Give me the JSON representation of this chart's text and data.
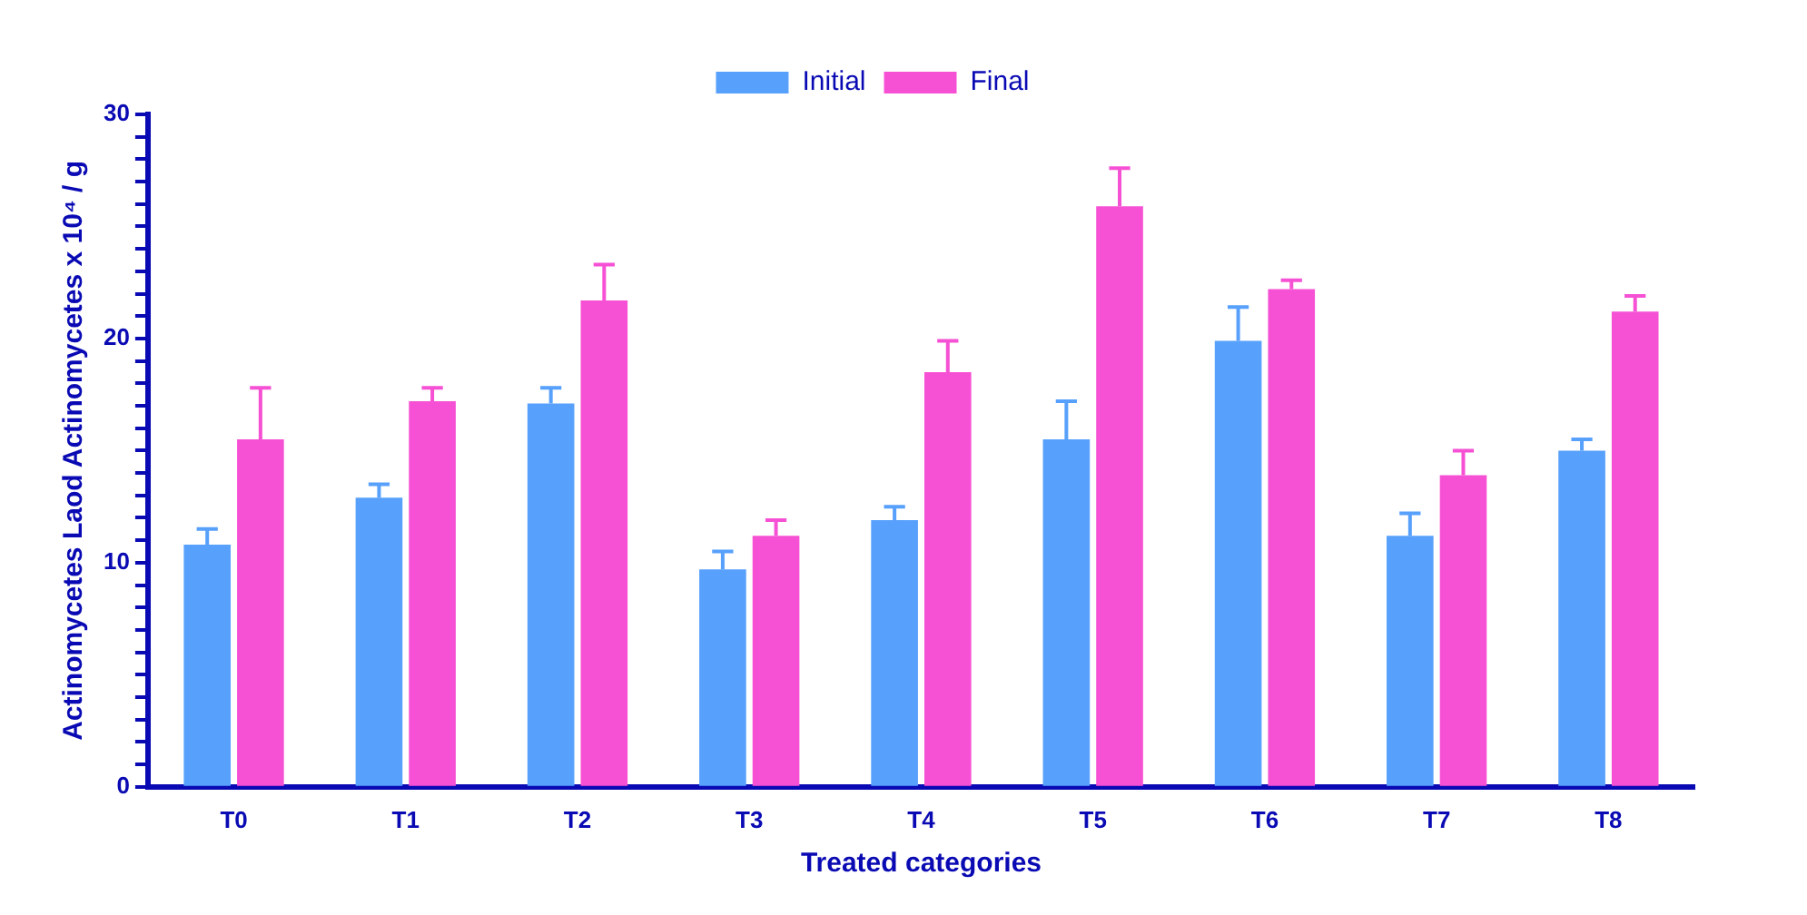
{
  "chart_data": {
    "type": "bar",
    "xlabel": "Treated categories",
    "ylabel": "Actinomycetes Laod Actinomycetes x 10⁴ / g",
    "categories": [
      "T0",
      "T1",
      "T2",
      "T3",
      "T4",
      "T5",
      "T6",
      "T7",
      "T8"
    ],
    "series": [
      {
        "name": "Initial",
        "color": "#57a0fc",
        "values": [
          10.8,
          12.9,
          17.1,
          9.7,
          11.9,
          15.5,
          19.9,
          11.2,
          15.0
        ],
        "errors": [
          [
            10.8,
            11.5
          ],
          [
            12.9,
            13.5
          ],
          [
            17.1,
            17.8
          ],
          [
            9.7,
            10.5
          ],
          [
            11.9,
            12.5
          ],
          [
            15.5,
            17.2
          ],
          [
            19.9,
            21.4
          ],
          [
            11.2,
            12.2
          ],
          [
            15.0,
            15.5
          ]
        ]
      },
      {
        "name": "Final",
        "color": "#f651d4",
        "values": [
          15.5,
          17.2,
          21.7,
          11.2,
          18.5,
          25.9,
          22.2,
          13.9,
          21.2
        ],
        "errors": [
          [
            15.5,
            17.8
          ],
          [
            17.2,
            17.8
          ],
          [
            21.7,
            23.3
          ],
          [
            11.2,
            11.9
          ],
          [
            18.5,
            19.9
          ],
          [
            25.9,
            27.6
          ],
          [
            22.2,
            22.6
          ],
          [
            13.9,
            15.0
          ],
          [
            21.2,
            21.9
          ]
        ]
      }
    ],
    "ylim": [
      0,
      30
    ],
    "yticks": [
      0,
      {
        "value": 1,
        "label": null
      },
      {
        "value": 2,
        "label": null
      },
      {
        "value": 3,
        "label": null
      },
      {
        "value": 4,
        "label": null
      },
      {
        "value": 5,
        "label": null
      },
      {
        "value": 6,
        "label": null
      },
      {
        "value": 7,
        "label": null
      },
      {
        "value": 8,
        "label": null
      },
      {
        "value": 9,
        "label": null
      },
      10,
      {
        "value": 11,
        "label": null
      },
      {
        "value": 12,
        "label": null
      },
      {
        "value": 13,
        "label": null
      },
      {
        "value": 14,
        "label": null
      },
      {
        "value": 15,
        "label": null
      },
      {
        "value": 16,
        "label": null
      },
      {
        "value": 17,
        "label": null
      },
      {
        "value": 18,
        "label": null
      },
      {
        "value": 19,
        "label": null
      },
      20,
      {
        "value": 21,
        "label": null
      },
      {
        "value": 22,
        "label": null
      },
      {
        "value": 23,
        "label": null
      },
      {
        "value": 24,
        "label": null
      },
      {
        "value": 25,
        "label": null
      },
      {
        "value": 26,
        "label": null
      },
      {
        "value": 27,
        "label": null
      },
      {
        "value": 28,
        "label": null
      },
      {
        "value": 29,
        "label": null
      },
      30
    ],
    "grid": false,
    "legend": "top"
  }
}
